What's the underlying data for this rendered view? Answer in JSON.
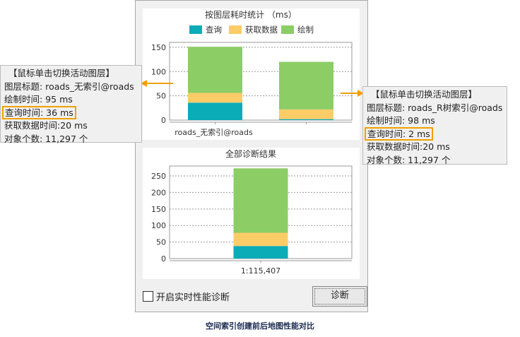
{
  "top_chart": {
    "title": "按图层耗时统计 （ms）",
    "legend": [
      {
        "name": "查询",
        "color": "#0aacb8"
      },
      {
        "name": "获取数据",
        "color": "#fccc66"
      },
      {
        "name": "绘制",
        "color": "#8ccd66"
      }
    ],
    "chart_data": {
      "type": "bar",
      "stacked": true,
      "categories": [
        "roads_无索引@roads",
        ""
      ],
      "series": [
        {
          "name": "查询",
          "values": [
            36,
            2
          ]
        },
        {
          "name": "获取数据",
          "values": [
            20,
            20
          ]
        },
        {
          "name": "绘制",
          "values": [
            95,
            98
          ]
        }
      ],
      "ylim": [
        0,
        160
      ],
      "yticks": [
        0,
        50,
        100,
        150
      ],
      "grid": true
    }
  },
  "bottom_chart": {
    "title": "全部诊断结果",
    "chart_data": {
      "type": "bar",
      "stacked": true,
      "categories": [
        "1:115,407"
      ],
      "series": [
        {
          "name": "查询",
          "values": [
            38
          ]
        },
        {
          "name": "获取数据",
          "values": [
            40
          ]
        },
        {
          "name": "绘制",
          "values": [
            195
          ]
        }
      ],
      "ylim": [
        0,
        280
      ],
      "yticks": [
        0,
        50,
        100,
        150,
        200,
        250
      ],
      "grid": true
    }
  },
  "left_callout": {
    "header": "【鼠标单击切换活动图层】",
    "title": "图层标题: roads_无索引@roads",
    "draw": "绘制时间: 95 ms",
    "query": "查询时间: 36 ms",
    "fetch": "获取数据时间:20 ms",
    "count": "对象个数: 11,297 个"
  },
  "right_callout": {
    "header": "【鼠标单击切换活动图层】",
    "title": "图层标题: roads_R树索引@roads",
    "draw": "绘制时间: 98 ms",
    "query": "查询时间: 2 ms",
    "fetch": "获取数据时间:20 ms",
    "count": "对象个数: 11,297 个"
  },
  "controls": {
    "realtime_label": "开启实时性能诊断",
    "realtime_checked": false,
    "diagnose_button": "诊断"
  },
  "caption": "空间索引创建前后地图性能对比",
  "colors": {
    "highlight": "#f0a000"
  }
}
